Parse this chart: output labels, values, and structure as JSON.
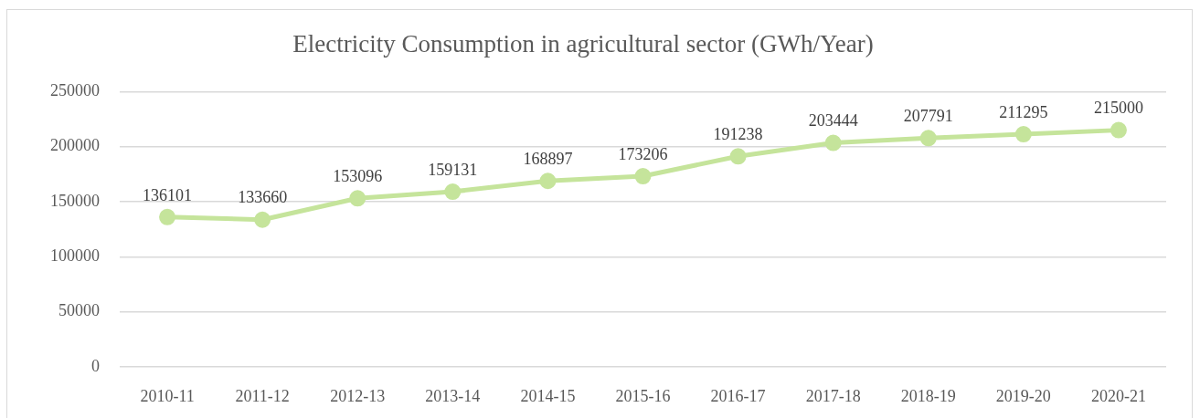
{
  "chart_data": {
    "type": "line",
    "title": "Electricity Consumption in agricultural sector (GWh/Year)",
    "categories": [
      "2010-11",
      "2011-12",
      "2012-13",
      "2013-14",
      "2014-15",
      "2015-16",
      "2016-17",
      "2017-18",
      "2018-19",
      "2019-20",
      "2020-21"
    ],
    "series": [
      {
        "color": "#c5e49b",
        "values": [
          136101,
          133660,
          153096,
          159131,
          168897,
          173206,
          191238,
          203444,
          207791,
          211295,
          215000
        ]
      }
    ],
    "ylim": [
      0,
      250000
    ],
    "yticks": [
      0,
      50000,
      100000,
      150000,
      200000,
      250000
    ],
    "grid": "y",
    "marker": "circle",
    "line_style": "solid",
    "data_labels": true
  }
}
